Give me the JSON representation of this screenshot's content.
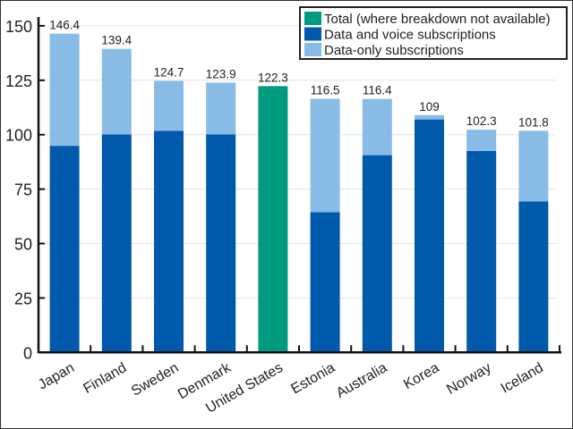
{
  "chart_data": {
    "type": "bar",
    "stacked": true,
    "categories": [
      "Japan",
      "Finland",
      "Sweden",
      "Denmark",
      "United States",
      "Estonia",
      "Australia",
      "Korea",
      "Norway",
      "Iceland"
    ],
    "totals": [
      146.4,
      139.4,
      124.7,
      123.9,
      122.3,
      116.5,
      116.4,
      109,
      102.3,
      101.8
    ],
    "total_labels": [
      "146.4",
      "139.4",
      "124.7",
      "123.9",
      "122.3",
      "116.5",
      "116.4",
      "109",
      "102.3",
      "101.8"
    ],
    "series": [
      {
        "name": "Total (where breakdown not available)",
        "color": "#009a80",
        "values": [
          null,
          null,
          null,
          null,
          122.3,
          null,
          null,
          null,
          null,
          null
        ]
      },
      {
        "name": "Data and voice subscriptions",
        "color": "#0059aa",
        "values": [
          94.9,
          100.1,
          101.8,
          100.1,
          null,
          64.4,
          90.6,
          107,
          92.5,
          69.4
        ]
      },
      {
        "name": "Data-only subscriptions",
        "color": "#88bce6",
        "values": [
          51.5,
          39.3,
          22.9,
          23.8,
          null,
          52.1,
          25.8,
          2,
          9.8,
          32.4
        ]
      }
    ],
    "yticks": [
      "0",
      "25",
      "50",
      "75",
      "100",
      "125",
      "150"
    ],
    "ylim": [
      0,
      150
    ],
    "grid": true,
    "legend": "top-right",
    "title": "",
    "xlabel": "",
    "ylabel": ""
  }
}
